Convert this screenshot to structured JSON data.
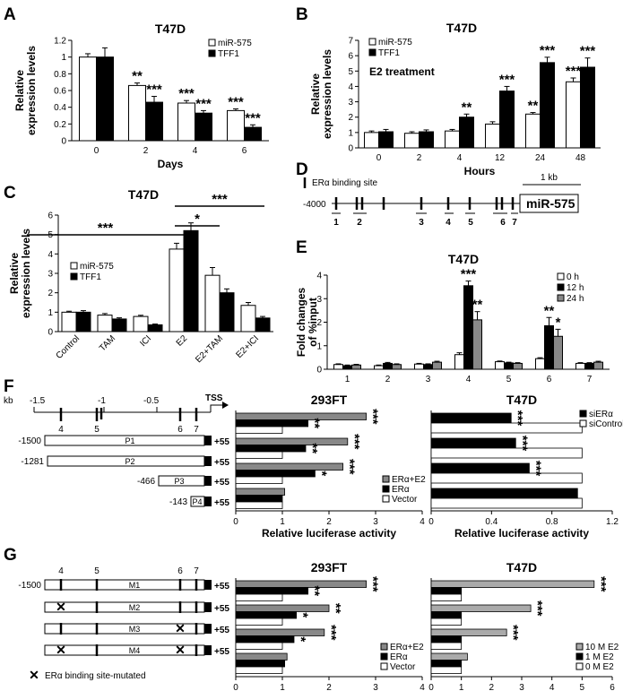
{
  "chart_data": [
    {
      "panel": "A",
      "type": "bar",
      "title": "T47D",
      "xlabel": "Days",
      "ylabel": "Relative expression levels",
      "ylim": [
        0,
        1.2
      ],
      "yticks": [
        "0",
        "0.2",
        "0.4",
        "0.6",
        "0.8",
        "1",
        "1.2"
      ],
      "categories": [
        "0",
        "2",
        "4",
        "6"
      ],
      "series": [
        {
          "name": "miR-575",
          "color": "#ffffff",
          "values": [
            1.0,
            0.66,
            0.45,
            0.36
          ],
          "errors": [
            0.04,
            0.03,
            0.03,
            0.02
          ]
        },
        {
          "name": "TFF1",
          "color": "#000000",
          "values": [
            1.0,
            0.46,
            0.33,
            0.16
          ],
          "errors": [
            0.11,
            0.07,
            0.03,
            0.03
          ]
        }
      ],
      "stars": [
        {
          "cat": 1,
          "series": 0,
          "text": "**"
        },
        {
          "cat": 1,
          "series": 1,
          "text": "***"
        },
        {
          "cat": 2,
          "series": 0,
          "text": "***"
        },
        {
          "cat": 2,
          "series": 1,
          "text": "***"
        },
        {
          "cat": 3,
          "series": 0,
          "text": "***"
        },
        {
          "cat": 3,
          "series": 1,
          "text": "***"
        }
      ]
    },
    {
      "panel": "B",
      "type": "bar",
      "title": "T47D",
      "xlabel": "Hours",
      "ylabel": "Relative expression levels",
      "ylim": [
        0,
        7
      ],
      "yticks": [
        "0",
        "1",
        "2",
        "3",
        "4",
        "5",
        "6",
        "7"
      ],
      "categories": [
        "0",
        "2",
        "4",
        "12",
        "24",
        "48"
      ],
      "annotation": "E2 treatment",
      "series": [
        {
          "name": "miR-575",
          "color": "#ffffff",
          "values": [
            1.0,
            0.95,
            1.1,
            1.55,
            2.2,
            4.3
          ],
          "errors": [
            0.1,
            0.1,
            0.1,
            0.15,
            0.1,
            0.25
          ]
        },
        {
          "name": "TFF1",
          "color": "#000000",
          "values": [
            1.05,
            1.05,
            2.0,
            3.7,
            5.55,
            5.25
          ],
          "errors": [
            0.15,
            0.12,
            0.2,
            0.3,
            0.35,
            0.6
          ]
        }
      ],
      "stars": [
        {
          "cat": 2,
          "series": 1,
          "text": "**"
        },
        {
          "cat": 3,
          "series": 1,
          "text": "***"
        },
        {
          "cat": 4,
          "series": 0,
          "text": "**"
        },
        {
          "cat": 4,
          "series": 1,
          "text": "***"
        },
        {
          "cat": 5,
          "series": 0,
          "text": "***"
        },
        {
          "cat": 5,
          "series": 1,
          "text": "***"
        }
      ]
    },
    {
      "panel": "C",
      "type": "bar",
      "title": "T47D",
      "xlabel": "",
      "ylabel": "Relative expression levels",
      "ylim": [
        0,
        6
      ],
      "yticks": [
        "0",
        "1",
        "2",
        "3",
        "4",
        "5",
        "6"
      ],
      "categories": [
        "Control",
        "TAM",
        "ICI",
        "E2",
        "E2+TAM",
        "E2+ICI"
      ],
      "series": [
        {
          "name": "miR-575",
          "color": "#ffffff",
          "values": [
            1.0,
            0.85,
            0.78,
            4.25,
            2.9,
            1.35
          ],
          "errors": [
            0.05,
            0.08,
            0.06,
            0.3,
            0.4,
            0.15
          ]
        },
        {
          "name": "TFF1",
          "color": "#000000",
          "values": [
            1.0,
            0.65,
            0.35,
            5.2,
            2.0,
            0.7
          ],
          "errors": [
            0.08,
            0.06,
            0.04,
            0.4,
            0.2,
            0.08
          ]
        }
      ],
      "brackets": [
        {
          "from": 0,
          "to": 3,
          "text": "***"
        },
        {
          "from": 3,
          "to": 4,
          "text": "*"
        },
        {
          "from": 3,
          "to": 5,
          "text": "***"
        }
      ]
    },
    {
      "panel": "D",
      "type": "diagram",
      "legend": "ERα binding site",
      "scale": "1 kb",
      "start": "-4000",
      "gene": "miR-575",
      "site_labels": [
        "1",
        "2",
        "3",
        "4",
        "5",
        "6",
        "7"
      ]
    },
    {
      "panel": "E",
      "type": "bar",
      "title": "T47D",
      "xlabel": "",
      "ylabel": "Fold changes of %input",
      "ylim": [
        0,
        4
      ],
      "yticks": [
        "0",
        "1",
        "2",
        "3",
        "4"
      ],
      "categories": [
        "1",
        "2",
        "3",
        "4",
        "5",
        "6",
        "7"
      ],
      "series": [
        {
          "name": "0 h",
          "color": "#ffffff",
          "values": [
            0.2,
            0.15,
            0.22,
            0.62,
            0.32,
            0.45,
            0.25
          ],
          "errors": [
            0.03,
            0.03,
            0.03,
            0.08,
            0.03,
            0.04,
            0.03
          ]
        },
        {
          "name": "12 h",
          "color": "#000000",
          "values": [
            0.15,
            0.25,
            0.2,
            3.55,
            0.27,
            1.85,
            0.25
          ],
          "errors": [
            0.03,
            0.04,
            0.03,
            0.2,
            0.03,
            0.35,
            0.03
          ]
        },
        {
          "name": "24 h",
          "color": "#888888",
          "values": [
            0.18,
            0.2,
            0.3,
            2.1,
            0.25,
            1.4,
            0.3
          ],
          "errors": [
            0.03,
            0.03,
            0.04,
            0.35,
            0.03,
            0.3,
            0.04
          ]
        }
      ],
      "stars": [
        {
          "cat": 3,
          "series": 1,
          "text": "***"
        },
        {
          "cat": 3,
          "series": 2,
          "text": "**"
        },
        {
          "cat": 5,
          "series": 1,
          "text": "**"
        },
        {
          "cat": 5,
          "series": 2,
          "text": "*"
        }
      ]
    },
    {
      "panel": "F-left",
      "type": "hbar",
      "title": "293FT",
      "xlabel": "Relative luciferase activity",
      "xlim": [
        0,
        4
      ],
      "xticks": [
        "0",
        "1",
        "2",
        "3",
        "4"
      ],
      "categories": [
        "P1",
        "P2",
        "P3",
        "P4"
      ],
      "series": [
        {
          "name": "ERα+E2",
          "color": "#888888",
          "values": [
            2.8,
            2.4,
            2.3,
            1.05
          ]
        },
        {
          "name": "ERα",
          "color": "#000000",
          "values": [
            1.55,
            1.5,
            1.7,
            1.0
          ]
        },
        {
          "name": "Vector",
          "color": "#ffffff",
          "values": [
            1.0,
            1.0,
            1.0,
            1.0
          ]
        }
      ],
      "stars": [
        {
          "cat": 0,
          "series": 0,
          "text": "***"
        },
        {
          "cat": 0,
          "series": 1,
          "text": "**"
        },
        {
          "cat": 1,
          "series": 0,
          "text": "***"
        },
        {
          "cat": 1,
          "series": 1,
          "text": "**"
        },
        {
          "cat": 2,
          "series": 0,
          "text": "***"
        },
        {
          "cat": 2,
          "series": 1,
          "text": "*"
        }
      ]
    },
    {
      "panel": "F-right",
      "type": "hbar",
      "title": "T47D",
      "xlabel": "Relative luciferase activity",
      "xlim": [
        0,
        1.2
      ],
      "xticks": [
        "0",
        "0.4",
        "0.8",
        "1.2"
      ],
      "categories": [
        "P1",
        "P2",
        "P3",
        "P4"
      ],
      "series": [
        {
          "name": "siERα",
          "color": "#000000",
          "values": [
            0.53,
            0.56,
            0.65,
            0.97
          ]
        },
        {
          "name": "siControl",
          "color": "#ffffff",
          "values": [
            1.0,
            1.0,
            1.0,
            1.0
          ]
        }
      ],
      "stars": [
        {
          "cat": 0,
          "series": 0,
          "text": "***"
        },
        {
          "cat": 1,
          "series": 0,
          "text": "***"
        },
        {
          "cat": 2,
          "series": 0,
          "text": "***"
        }
      ]
    },
    {
      "panel": "G-left",
      "type": "hbar",
      "title": "293FT",
      "xlabel": "Relative luciferase activity",
      "xlim": [
        0,
        4
      ],
      "xticks": [
        "0",
        "1",
        "2",
        "3",
        "4"
      ],
      "categories": [
        "M1",
        "M2",
        "M3",
        "M4"
      ],
      "series": [
        {
          "name": "ERα+E2",
          "color": "#888888",
          "values": [
            2.8,
            2.0,
            1.9,
            1.1
          ]
        },
        {
          "name": "ERα",
          "color": "#000000",
          "values": [
            1.55,
            1.3,
            1.25,
            1.05
          ]
        },
        {
          "name": "Vector",
          "color": "#ffffff",
          "values": [
            1.0,
            1.0,
            1.0,
            1.0
          ]
        }
      ],
      "stars": [
        {
          "cat": 0,
          "series": 0,
          "text": "***"
        },
        {
          "cat": 0,
          "series": 1,
          "text": "**"
        },
        {
          "cat": 1,
          "series": 0,
          "text": "**"
        },
        {
          "cat": 1,
          "series": 1,
          "text": "*"
        },
        {
          "cat": 2,
          "series": 0,
          "text": "***"
        },
        {
          "cat": 2,
          "series": 1,
          "text": "*"
        }
      ]
    },
    {
      "panel": "G-right",
      "type": "hbar",
      "title": "T47D",
      "xlabel": "Relative luciferase activity",
      "xlim": [
        0,
        6
      ],
      "xticks": [
        "0",
        "1",
        "2",
        "3",
        "4",
        "5",
        "6"
      ],
      "categories": [
        "M1",
        "M2",
        "M3",
        "M4"
      ],
      "series": [
        {
          "name": "10 M E2",
          "color": "#aaaaaa",
          "values": [
            5.4,
            3.3,
            2.5,
            1.2
          ]
        },
        {
          "name": "1 M E2",
          "color": "#000000",
          "values": [
            1.0,
            1.0,
            1.0,
            1.0
          ]
        },
        {
          "name": "0 M E2",
          "color": "#ffffff",
          "values": [
            1.0,
            1.0,
            1.0,
            1.0
          ]
        }
      ],
      "stars": [
        {
          "cat": 0,
          "series": 0,
          "text": "***"
        },
        {
          "cat": 1,
          "series": 0,
          "text": "***"
        },
        {
          "cat": 2,
          "series": 0,
          "text": "***"
        }
      ]
    }
  ],
  "labels": {
    "panels": [
      "A",
      "B",
      "C",
      "D",
      "E",
      "F",
      "G"
    ],
    "kb_axis": {
      "unit": "kb",
      "ticks": [
        "-1.5",
        "-1",
        "-0.5"
      ],
      "tss": "TSS",
      "sites": [
        "4",
        "5",
        "6",
        "7"
      ]
    },
    "f_constructs": [
      {
        "start": "-1500",
        "name": "P1",
        "end": "+55"
      },
      {
        "start": "-1281",
        "name": "P2",
        "end": "+55"
      },
      {
        "start": "-466",
        "name": "P3",
        "end": "+55"
      },
      {
        "start": "-143",
        "name": "P4",
        "end": "+55"
      }
    ],
    "g_constructs": [
      {
        "start": "-1500",
        "name": "M1",
        "end": "+55"
      },
      {
        "name": "M2",
        "end": "+55"
      },
      {
        "name": "M3",
        "end": "+55"
      },
      {
        "name": "M4",
        "end": "+55"
      }
    ],
    "g_sites": [
      "4",
      "5",
      "6",
      "7"
    ],
    "g_legend": "ERα binding site-mutated"
  }
}
